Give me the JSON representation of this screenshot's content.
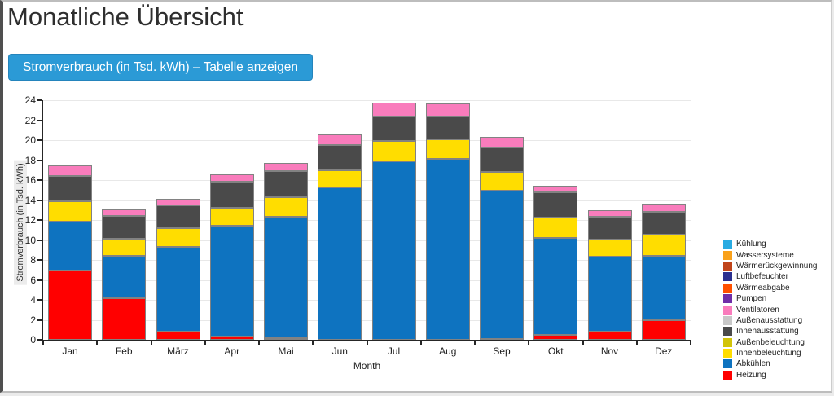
{
  "header": {
    "title": "Monatliche Übersicht",
    "button_label": "Stromverbrauch (in Tsd. kWh) – Tabelle anzeigen"
  },
  "colors": {
    "button_bg": "#2b9ad6",
    "axis": "#262626",
    "gridline": "#e8e8e8",
    "segment_border": "#828282"
  },
  "chart_data": {
    "type": "bar",
    "stacked": true,
    "title": "",
    "xlabel": "Month",
    "ylabel": "Stromverbrauch (in Tsd. kWh)",
    "ylim": [
      0,
      24
    ],
    "ytick_step": 2,
    "grid": true,
    "legend_position": "right",
    "categories": [
      "Jan",
      "Feb",
      "März",
      "Apr",
      "Mai",
      "Jun",
      "Jul",
      "Aug",
      "Sep",
      "Okt",
      "Nov",
      "Dez"
    ],
    "series_note": "series listed bottom-to-top of stack; legend shows reverse order",
    "series": [
      {
        "name": "Heizung",
        "color": "#ff0000",
        "values": [
          6.9,
          4.2,
          0.8,
          0.35,
          0.2,
          0,
          0,
          0,
          0.1,
          0.5,
          0.85,
          2.0
        ]
      },
      {
        "name": "Abkühlen",
        "color": "#0e73c0",
        "values": [
          4.95,
          4.2,
          8.5,
          11.05,
          12.15,
          15.3,
          17.85,
          18.1,
          14.8,
          9.7,
          7.5,
          6.45
        ]
      },
      {
        "name": "Innenbeleuchtung",
        "color": "#ffdd00",
        "values": [
          2.05,
          1.7,
          1.85,
          1.8,
          1.95,
          1.7,
          2.1,
          1.95,
          1.9,
          2.05,
          1.7,
          2.1
        ]
      },
      {
        "name": "Außenbeleuchtung",
        "color": "#d2c40a",
        "values": [
          0,
          0,
          0,
          0,
          0,
          0,
          0,
          0,
          0,
          0,
          0,
          0
        ]
      },
      {
        "name": "Innenausstattung",
        "color": "#4a4a4a",
        "values": [
          2.55,
          2.3,
          2.35,
          2.65,
          2.6,
          2.5,
          2.45,
          2.35,
          2.5,
          2.5,
          2.25,
          2.3
        ]
      },
      {
        "name": "Außenausstattung",
        "color": "#c8c8c8",
        "values": [
          0,
          0,
          0,
          0,
          0,
          0,
          0,
          0,
          0,
          0,
          0,
          0
        ]
      },
      {
        "name": "Ventilatoren",
        "color": "#f97cbc",
        "values": [
          1.0,
          0.7,
          0.6,
          0.75,
          0.8,
          1.1,
          1.35,
          1.3,
          1.0,
          0.7,
          0.7,
          0.75
        ]
      },
      {
        "name": "Pumpen",
        "color": "#6f2da8",
        "values": [
          0,
          0,
          0,
          0,
          0,
          0,
          0,
          0,
          0,
          0,
          0,
          0
        ]
      },
      {
        "name": "Wärmeabgabe",
        "color": "#ff5000",
        "values": [
          0,
          0,
          0,
          0,
          0,
          0,
          0,
          0,
          0,
          0,
          0,
          0
        ]
      },
      {
        "name": "Luftbefeuchter",
        "color": "#2b2f8f",
        "values": [
          0,
          0,
          0,
          0,
          0,
          0,
          0,
          0,
          0,
          0,
          0,
          0
        ]
      },
      {
        "name": "Wärmerückgewinnung",
        "color": "#c0441a",
        "values": [
          0,
          0,
          0,
          0,
          0,
          0,
          0,
          0,
          0,
          0,
          0,
          0
        ]
      },
      {
        "name": "Wassersysteme",
        "color": "#f9a11b",
        "values": [
          0,
          0,
          0,
          0,
          0,
          0,
          0,
          0,
          0,
          0,
          0,
          0
        ]
      },
      {
        "name": "Kühlung",
        "color": "#29abe2",
        "values": [
          0,
          0,
          0,
          0,
          0,
          0,
          0,
          0,
          0,
          0,
          0,
          0
        ]
      }
    ]
  }
}
